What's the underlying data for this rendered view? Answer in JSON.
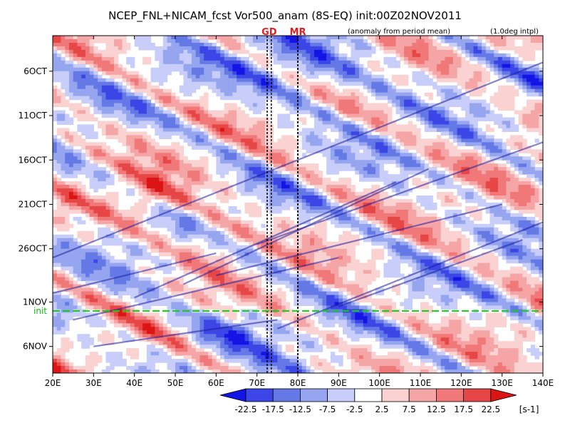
{
  "chart_data": {
    "type": "heatmap",
    "title": "NCEP_FNL+NICAM_fcst Vor500_anam (8S-EQ) init:00Z02NOV2011",
    "subtitle_left": "(anomaly from period mean)",
    "subtitle_right": "(1.0deg intpl)",
    "xlabel": "",
    "ylabel": "",
    "x_ticks": [
      "20E",
      "30E",
      "40E",
      "50E",
      "60E",
      "70E",
      "80E",
      "90E",
      "100E",
      "110E",
      "120E",
      "130E",
      "140E"
    ],
    "xlim": [
      20,
      140
    ],
    "y_ticks": [
      "6OCT",
      "11OCT",
      "16OCT",
      "21OCT",
      "26OCT",
      "1NOV",
      "6NOV"
    ],
    "y_tick_days": [
      5,
      10,
      15,
      20,
      25,
      31,
      36
    ],
    "ylim_days": [
      1,
      39
    ],
    "init_label": "init",
    "init_day": 32,
    "markers": [
      {
        "label": "GD",
        "lon_left": 72.5,
        "lon_right": 73.5
      },
      {
        "label": "MR",
        "lon_left": 80,
        "lon_right": 80
      }
    ],
    "colorbar": {
      "ticks": [
        "-22.5",
        "-17.5",
        "-12.5",
        "-7.5",
        "-2.5",
        "2.5",
        "7.5",
        "12.5",
        "17.5",
        "22.5"
      ],
      "unit": "[s-1]",
      "colors": [
        "#1414e6",
        "#3c46e6",
        "#6478e6",
        "#96a5f0",
        "#c8cdfa",
        "#ffffff",
        "#fad2d2",
        "#f5a5a5",
        "#f07878",
        "#e64646",
        "#dc1414"
      ]
    }
  }
}
